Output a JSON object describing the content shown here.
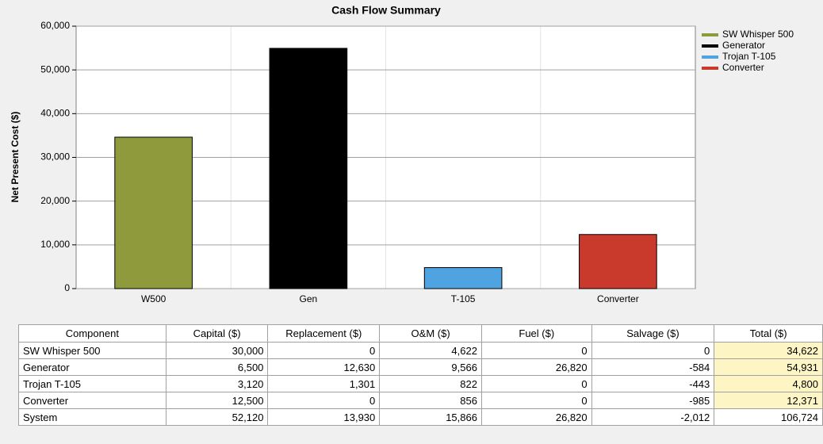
{
  "chart_data": {
    "type": "bar",
    "title": "Cash Flow Summary",
    "y_label": "Net Present Cost ($)",
    "categories": [
      "W500",
      "Gen",
      "T-105",
      "Converter"
    ],
    "values": [
      34622,
      54931,
      4800,
      12371
    ],
    "colors": [
      "#8f9a3c",
      "#000000",
      "#4fa3e0",
      "#c9392c"
    ],
    "legend": [
      "SW Whisper 500",
      "Generator",
      "Trojan T-105",
      "Converter"
    ],
    "ylim": [
      0,
      60000
    ],
    "yticks": [
      {
        "value": 0,
        "label": "0"
      },
      {
        "value": 10000,
        "label": "10,000"
      },
      {
        "value": 20000,
        "label": "20,000"
      },
      {
        "value": 30000,
        "label": "30,000"
      },
      {
        "value": 40000,
        "label": "40,000"
      },
      {
        "value": 50000,
        "label": "50,000"
      },
      {
        "value": 60000,
        "label": "60,000"
      }
    ],
    "grid": true
  },
  "table": {
    "header": [
      "Component",
      "Capital ($)",
      "Replacement ($)",
      "O&M ($)",
      "Fuel ($)",
      "Salvage ($)",
      "Total ($)"
    ],
    "rows": [
      [
        "SW Whisper 500",
        "30,000",
        "0",
        "4,622",
        "0",
        "0",
        "34,622"
      ],
      [
        "Generator",
        "6,500",
        "12,630",
        "9,566",
        "26,820",
        "-584",
        "54,931"
      ],
      [
        "Trojan T-105",
        "3,120",
        "1,301",
        "822",
        "0",
        "-443",
        "4,800"
      ],
      [
        "Converter",
        "12,500",
        "0",
        "856",
        "0",
        "-985",
        "12,371"
      ],
      [
        "System",
        "52,120",
        "13,930",
        "15,866",
        "26,820",
        "-2,012",
        "106,724"
      ]
    ]
  }
}
